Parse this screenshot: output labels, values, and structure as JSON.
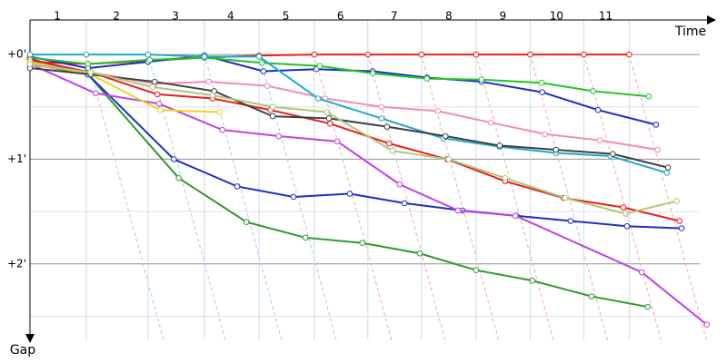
{
  "chart_data": {
    "type": "line",
    "x_label": "Time",
    "y_label": "Gap",
    "xlim": [
      0,
      12.6
    ],
    "ylim": [
      -0.33,
      2.73
    ],
    "xticks": [
      {
        "value": 0.5,
        "label": "1"
      },
      {
        "value": 1.58,
        "label": "2"
      },
      {
        "value": 2.66,
        "label": "3"
      },
      {
        "value": 3.67,
        "label": "4"
      },
      {
        "value": 4.68,
        "label": "5"
      },
      {
        "value": 5.68,
        "label": "6"
      },
      {
        "value": 6.66,
        "label": "7"
      },
      {
        "value": 7.66,
        "label": "8"
      },
      {
        "value": 8.65,
        "label": "9"
      },
      {
        "value": 9.63,
        "label": "10"
      },
      {
        "value": 10.53,
        "label": "11"
      }
    ],
    "xgrid": [
      1.03,
      2.16,
      3.19,
      4.19,
      5.2,
      6.18,
      7.16,
      8.16,
      9.15,
      10.13,
      10.96
    ],
    "yticks": [
      {
        "value": 0,
        "label": "+0'"
      },
      {
        "value": 1,
        "label": "+1'"
      },
      {
        "value": 2,
        "label": "+2'"
      }
    ],
    "yminor": [
      0.5,
      1.5,
      2.5
    ],
    "series": [
      {
        "color": "#ee1c1c",
        "x": [
          0,
          1.06,
          2.16,
          3.19,
          4.19,
          5.2,
          6.18,
          7.16,
          8.16,
          9.15,
          10.13,
          10.96
        ],
        "values": [
          0.07,
          0.09,
          0.06,
          0.03,
          0.01,
          0,
          0,
          0,
          0,
          0,
          0,
          0
        ]
      },
      {
        "color": "#2e9a2e",
        "x": [
          0,
          1.06,
          2.72,
          3.96,
          5.04,
          6.08,
          7.13,
          8.16,
          9.19,
          10.27,
          11.3
        ],
        "values": [
          0.09,
          0.19,
          1.18,
          1.6,
          1.75,
          1.8,
          1.9,
          2.06,
          2.16,
          2.31,
          2.41
        ]
      },
      {
        "color": "#1a2ec8",
        "x": [
          0,
          1.06,
          2.63,
          3.79,
          4.82,
          5.85,
          6.85,
          7.91,
          8.89,
          9.89,
          10.92,
          11.92
        ],
        "values": [
          0.04,
          0.19,
          1.0,
          1.26,
          1.36,
          1.33,
          1.42,
          1.49,
          1.54,
          1.59,
          1.64,
          1.66
        ]
      },
      {
        "color": "#c040e8",
        "x": [
          0,
          1.2,
          2.36,
          3.52,
          4.55,
          5.62,
          6.76,
          7.83,
          8.88,
          11.19,
          12.38
        ],
        "values": [
          0.09,
          0.37,
          0.47,
          0.72,
          0.78,
          0.83,
          1.24,
          1.49,
          1.54,
          2.08,
          2.58
        ]
      },
      {
        "color": "#1a2ec8",
        "x": [
          0,
          1.06,
          2.16,
          3.19,
          4.27,
          5.24,
          6.27,
          7.26,
          8.26,
          9.37,
          10.39,
          11.45
        ],
        "values": [
          0.02,
          0.13,
          0.07,
          0.01,
          0.16,
          0.14,
          0.16,
          0.22,
          0.26,
          0.36,
          0.53,
          0.67
        ]
      },
      {
        "color": "#22c422",
        "x": [
          0,
          1.06,
          2.19,
          3.19,
          4.24,
          5.3,
          6.27,
          7.26,
          8.26,
          9.36,
          10.3,
          11.32
        ],
        "values": [
          0.03,
          0.09,
          0.05,
          0.03,
          0.08,
          0.11,
          0.18,
          0.23,
          0.24,
          0.27,
          0.35,
          0.4
        ]
      },
      {
        "color": "#ee1c1c",
        "x": [
          0,
          1.11,
          2.33,
          3.34,
          4.4,
          5.49,
          6.57,
          7.63,
          8.69,
          9.76,
          10.85,
          11.88
        ],
        "values": [
          0.05,
          0.17,
          0.38,
          0.42,
          0.53,
          0.66,
          0.85,
          1.0,
          1.21,
          1.37,
          1.46,
          1.59
        ]
      },
      {
        "color": "#f48ab8",
        "x": [
          0,
          1.11,
          2.28,
          3.27,
          4.34,
          5.4,
          6.43,
          7.46,
          8.43,
          9.42,
          10.42,
          11.48
        ],
        "values": [
          0.1,
          0.17,
          0.28,
          0.26,
          0.3,
          0.42,
          0.5,
          0.54,
          0.65,
          0.76,
          0.82,
          0.91
        ]
      },
      {
        "color": "#e8d820",
        "x": [
          0,
          1.11,
          2.38,
          3.47
        ],
        "values": [
          0.07,
          0.19,
          0.53,
          0.55
        ]
      },
      {
        "color": "#20a8c8",
        "x": [
          0,
          1.03,
          2.16,
          3.19,
          4.19,
          5.27,
          6.43,
          7.56,
          8.59,
          9.62,
          10.62,
          11.65
        ],
        "values": [
          0,
          0,
          0,
          0.02,
          0.02,
          0.42,
          0.61,
          0.8,
          0.88,
          0.94,
          0.97,
          1.13
        ]
      },
      {
        "color": "#404040",
        "x": [
          0,
          1.11,
          2.28,
          3.37,
          4.44,
          5.47,
          6.53,
          7.6,
          8.59,
          9.62,
          10.66,
          11.67
        ],
        "values": [
          0.13,
          0.19,
          0.26,
          0.35,
          0.59,
          0.61,
          0.69,
          0.78,
          0.87,
          0.91,
          0.95,
          1.08
        ]
      },
      {
        "color": "#a8c878",
        "x": [
          0,
          1.11,
          2.24,
          3.34,
          4.44,
          5.43,
          6.63,
          7.66,
          8.69,
          9.79,
          10.89,
          11.83
        ],
        "values": [
          0.09,
          0.17,
          0.31,
          0.39,
          0.5,
          0.55,
          0.92,
          1.0,
          1.18,
          1.37,
          1.52,
          1.4
        ]
      }
    ]
  }
}
